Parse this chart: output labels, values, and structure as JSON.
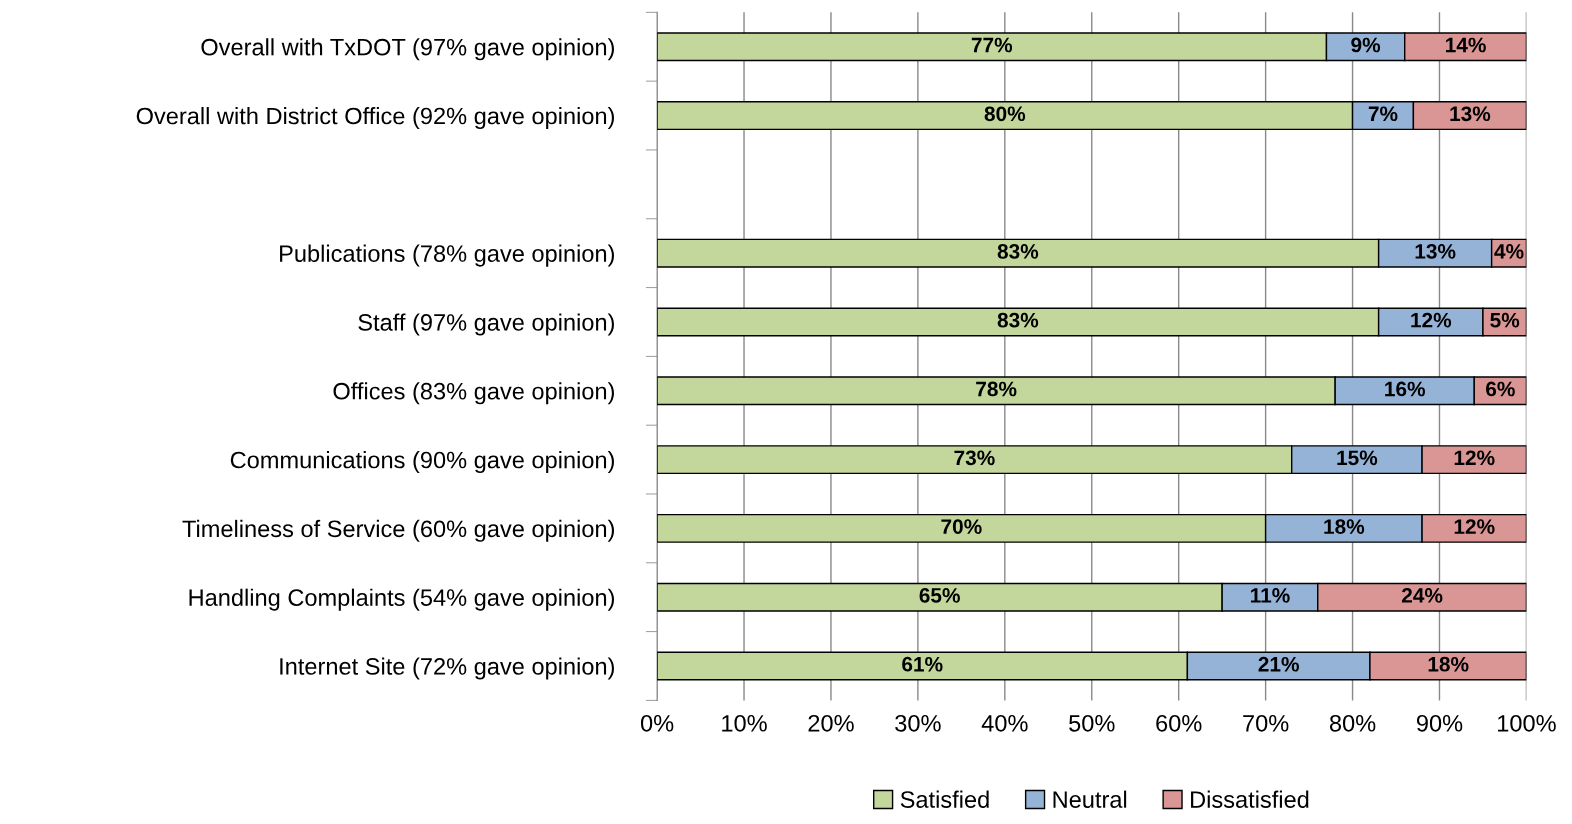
{
  "chart_data": {
    "type": "bar",
    "orientation": "horizontal",
    "stacked": true,
    "categories": [
      "Overall with TxDOT (97% gave opinion)",
      "Overall with District Office (92% gave opinion)",
      null,
      "Publications (78% gave opinion)",
      "Staff (97% gave opinion)",
      "Offices (83% gave opinion)",
      "Communications (90% gave opinion)",
      "Timeliness of Service (60% gave opinion)",
      "Handling Complaints (54% gave opinion)",
      "Internet Site (72% gave opinion)"
    ],
    "series": [
      {
        "name": "Satisfied",
        "color": "#c3d69b",
        "values": [
          77,
          80,
          null,
          83,
          83,
          78,
          73,
          70,
          65,
          61
        ],
        "value_labels": [
          "77%",
          "80%",
          null,
          "83%",
          "83%",
          "78%",
          "73%",
          "70%",
          "65%",
          "61%"
        ]
      },
      {
        "name": "Neutral",
        "color": "#95b3d7",
        "values": [
          9,
          7,
          null,
          13,
          12,
          16,
          15,
          18,
          11,
          21
        ],
        "value_labels": [
          "9%",
          "7%",
          null,
          "13%",
          "12%",
          "16%",
          "15%",
          "18%",
          "11%",
          "21%"
        ]
      },
      {
        "name": "Dissatisfied",
        "color": "#d99694",
        "values": [
          14,
          13,
          null,
          4,
          5,
          6,
          12,
          12,
          24,
          18
        ],
        "value_labels": [
          "14%",
          "13%",
          null,
          "4%",
          "5%",
          "6%",
          "12%",
          "12%",
          "24%",
          "18%"
        ]
      }
    ],
    "xlim": [
      0,
      100
    ],
    "xticks": [
      {
        "value": 0,
        "label": "0%"
      },
      {
        "value": 10,
        "label": "10%"
      },
      {
        "value": 20,
        "label": "20%"
      },
      {
        "value": 30,
        "label": "30%"
      },
      {
        "value": 40,
        "label": "40%"
      },
      {
        "value": 50,
        "label": "50%"
      },
      {
        "value": 60,
        "label": "60%"
      },
      {
        "value": 70,
        "label": "70%"
      },
      {
        "value": 80,
        "label": "80%"
      },
      {
        "value": 90,
        "label": "90%"
      },
      {
        "value": 100,
        "label": "100%"
      }
    ],
    "grid": "x",
    "legend": "bottom"
  }
}
